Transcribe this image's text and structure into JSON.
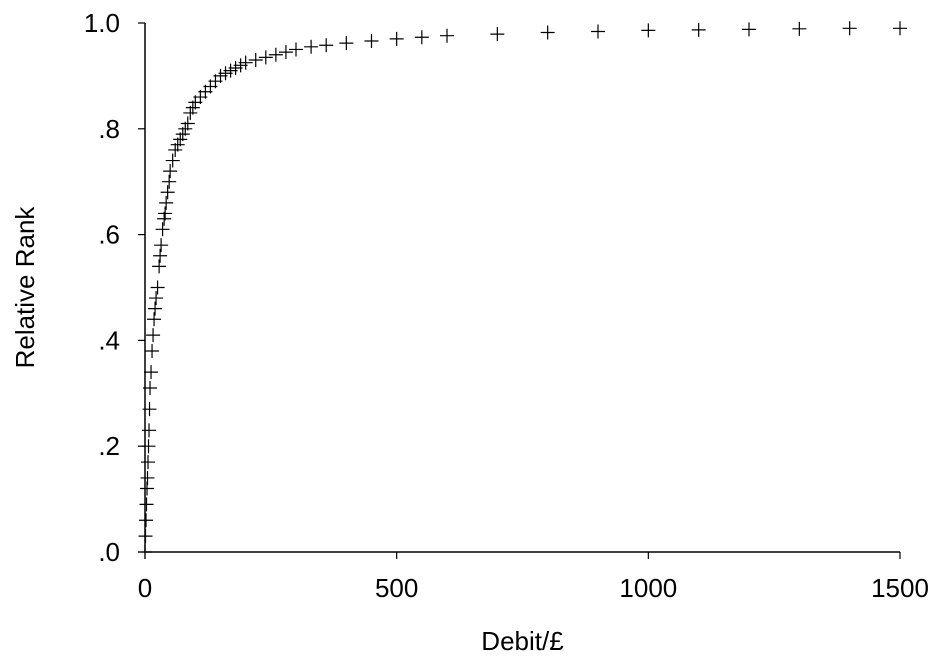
{
  "chart_data": {
    "type": "scatter",
    "title": "",
    "xlabel": "Debit/£",
    "ylabel": "Relative Rank",
    "xlim": [
      0,
      1500
    ],
    "ylim": [
      0,
      1
    ],
    "grid": false,
    "marker": "plus",
    "colors": {
      "marker": "#000000",
      "axis": "#000000"
    },
    "x_ticks": [
      0,
      500,
      1000,
      1500
    ],
    "x_tick_labels": [
      "0",
      "500",
      "1000",
      "1500"
    ],
    "y_ticks": [
      0,
      0.2,
      0.4,
      0.6,
      0.8,
      1.0
    ],
    "y_tick_labels": [
      ".0",
      ".2",
      ".4",
      ".6",
      ".8",
      "1.0"
    ],
    "series": [
      {
        "x": [
          0,
          1,
          2,
          3,
          4,
          5,
          6,
          7,
          8,
          9,
          10,
          12,
          14,
          16,
          18,
          20,
          22,
          25,
          28,
          30,
          32,
          35,
          38,
          40,
          42,
          45,
          48,
          50,
          55,
          60,
          65,
          70,
          75,
          80,
          85,
          90,
          95,
          100,
          110,
          120,
          130,
          140,
          150,
          160,
          170,
          180,
          190,
          200,
          220,
          240,
          260,
          280,
          300,
          330,
          360,
          400,
          450,
          500,
          550,
          600,
          700,
          800,
          900,
          1000,
          1100,
          1200,
          1300,
          1400,
          1500
        ],
        "y": [
          0.0,
          0.03,
          0.06,
          0.09,
          0.12,
          0.14,
          0.17,
          0.2,
          0.23,
          0.27,
          0.31,
          0.34,
          0.38,
          0.41,
          0.44,
          0.46,
          0.48,
          0.5,
          0.54,
          0.56,
          0.58,
          0.61,
          0.63,
          0.64,
          0.66,
          0.68,
          0.7,
          0.72,
          0.74,
          0.76,
          0.77,
          0.78,
          0.79,
          0.8,
          0.81,
          0.83,
          0.84,
          0.85,
          0.86,
          0.87,
          0.88,
          0.89,
          0.9,
          0.905,
          0.91,
          0.915,
          0.92,
          0.925,
          0.93,
          0.935,
          0.94,
          0.945,
          0.95,
          0.955,
          0.958,
          0.962,
          0.966,
          0.97,
          0.973,
          0.976,
          0.979,
          0.982,
          0.984,
          0.986,
          0.987,
          0.988,
          0.989,
          0.99,
          0.99
        ]
      }
    ]
  }
}
